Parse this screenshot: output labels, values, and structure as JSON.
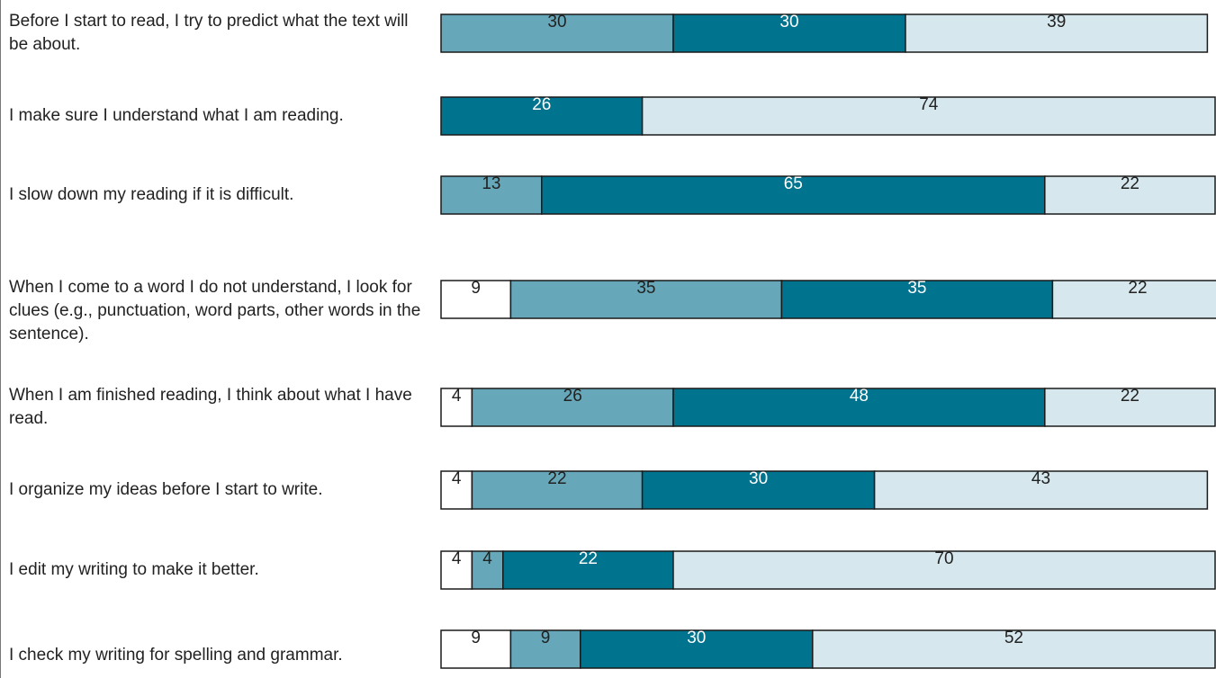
{
  "chart_data": {
    "type": "bar",
    "orientation": "horizontal",
    "stacked": true,
    "normalized_to": 100,
    "colors": [
      "#ffffff",
      "#66a8b9",
      "#00738e",
      "#d6e8ee"
    ],
    "text_colors": [
      "#222222",
      "#222222",
      "#ffffff",
      "#222222"
    ],
    "categories": [
      "Before I start to read, I try to predict what the text will be about.",
      "I make sure I understand what I am reading.",
      "I slow down my reading if it is difficult.",
      "When I come to a word I do not understand, I look for clues (e.g., punctuation, word parts, other words in the sentence).",
      "When I am finished reading, I think about what I have read.",
      "I organize my ideas before I start to write.",
      "I edit my writing to make it better.",
      "I check my writing for spelling and grammar."
    ],
    "series": [
      {
        "values": [
          0,
          0,
          0,
          9,
          4,
          4,
          4,
          9
        ]
      },
      {
        "values": [
          30,
          0,
          13,
          35,
          26,
          22,
          4,
          9
        ]
      },
      {
        "values": [
          30,
          26,
          65,
          35,
          48,
          30,
          22,
          30
        ]
      },
      {
        "values": [
          39,
          74,
          22,
          22,
          22,
          43,
          70,
          52
        ]
      }
    ]
  }
}
